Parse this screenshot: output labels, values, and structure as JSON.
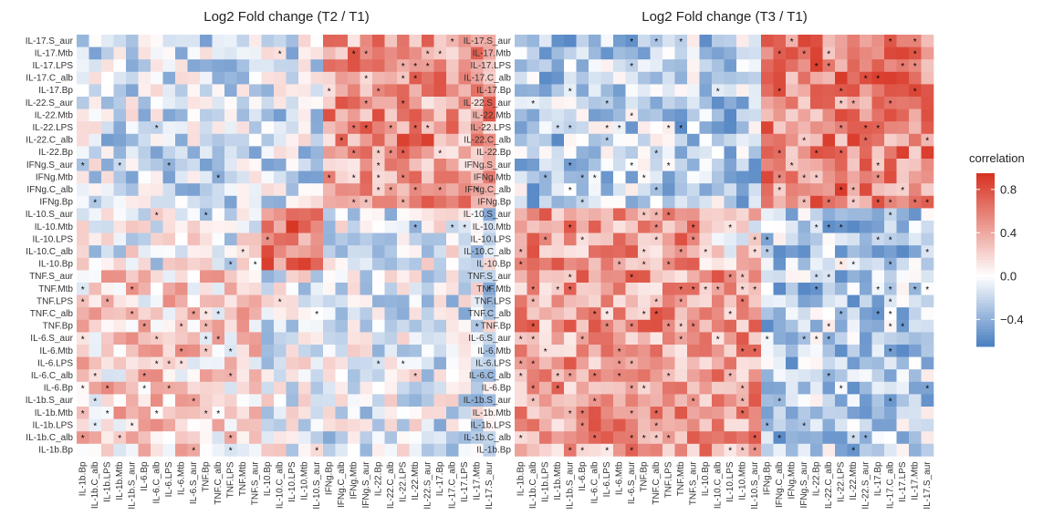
{
  "chart_data": {
    "type": "heatmap",
    "colorbar": {
      "title": "correlation",
      "ticks": [
        0.8,
        0.4,
        0.0,
        -0.4
      ],
      "tick_labels": [
        "0.8",
        "0.4",
        "0.0",
        "−0.4"
      ],
      "range": [
        -0.65,
        0.95
      ],
      "low_color": "#4a7fc1",
      "mid_color": "#ffffff",
      "high_color": "#d7301f"
    },
    "rows": [
      "IL-17.S_aur",
      "IL-17.Mtb",
      "IL-17.LPS",
      "IL-17.C_alb",
      "IL-17.Bp",
      "IL-22.S_aur",
      "IL-22.Mtb",
      "IL-22.LPS",
      "IL-22.C_alb",
      "IL-22.Bp",
      "IFNg.S_aur",
      "IFNg.Mtb",
      "IFNg.C_alb",
      "IFNg.Bp",
      "IL-10.S_aur",
      "IL-10.Mtb",
      "IL-10.LPS",
      "IL-10.C_alb",
      "IL-10.Bp",
      "TNF.S_aur",
      "TNF.Mtb",
      "TNF.LPS",
      "TNF.C_alb",
      "TNF.Bp",
      "IL-6.S_aur",
      "IL-6.Mtb",
      "IL-6.LPS",
      "IL-6.C_alb",
      "IL-6.Bp",
      "IL-1b.S_aur",
      "IL-1b.Mtb",
      "IL-1b.LPS",
      "IL-1b.C_alb",
      "IL-1b.Bp"
    ],
    "columns": [
      "IL-1b.Bp",
      "IL-1b.C_alb",
      "IL-1b.LPS",
      "IL-1b.Mtb",
      "IL-1b.S_aur",
      "IL-6.Bp",
      "IL-6.C_alb",
      "IL-6.LPS",
      "IL-6.Mtb",
      "IL-6.S_aur",
      "TNF.Bp",
      "TNF.C_alb",
      "TNF.LPS",
      "TNF.Mtb",
      "TNF.S_aur",
      "IL-10.Bp",
      "IL-10.C_alb",
      "IL-10.LPS",
      "IL-10.Mtb",
      "IL-10.S_aur",
      "IFNg.Bp",
      "IFNg.C_alb",
      "IFNg.Mtb",
      "IFNg.S_aur",
      "IL-22.Bp",
      "IL-22.C_alb",
      "IL-22.LPS",
      "IL-22.Mtb",
      "IL-22.S_aur",
      "IL-17.Bp",
      "IL-17.C_alb",
      "IL-17.LPS",
      "IL-17.Mtb",
      "IL-17.S_aur"
    ],
    "panels": [
      {
        "title": "Log2 Fold change (T2 / T1)",
        "blocks": [
          {
            "rows": [
              0,
              13
            ],
            "cols": [
              20,
              33
            ],
            "value": 0.45
          },
          {
            "rows": [
              0,
              13
            ],
            "cols": [
              0,
              19
            ],
            "value": -0.15
          },
          {
            "rows": [
              14,
              18
            ],
            "cols": [
              15,
              19
            ],
            "value": 0.6
          },
          {
            "rows": [
              14,
              33
            ],
            "cols": [
              20,
              33
            ],
            "value": -0.1
          },
          {
            "rows": [
              19,
              33
            ],
            "cols": [
              0,
              14
            ],
            "value": 0.2
          },
          {
            "rows": [
              14,
              18
            ],
            "cols": [
              0,
              14
            ],
            "value": -0.05
          },
          {
            "rows": [
              19,
              33
            ],
            "cols": [
              15,
              19
            ],
            "value": -0.05
          },
          {
            "rows": [
              6,
              9
            ],
            "cols": [
              24,
              28
            ],
            "value": 0.55
          }
        ],
        "star_pattern": [
          {
            "rows": [
              14,
              17
            ],
            "cols": [
              15,
              19
            ]
          },
          {
            "rows": [
              1,
              13
            ],
            "cols": [
              20,
              29
            ]
          },
          {
            "rows": [
              20,
              33
            ],
            "cols": [
              0,
              12
            ]
          }
        ]
      },
      {
        "title": "Log2 Fold change (T3 / T1)",
        "blocks": [
          {
            "rows": [
              0,
              13
            ],
            "cols": [
              20,
              33
            ],
            "value": 0.55
          },
          {
            "rows": [
              0,
              13
            ],
            "cols": [
              0,
              19
            ],
            "value": -0.25
          },
          {
            "rows": [
              14,
              33
            ],
            "cols": [
              0,
              19
            ],
            "value": 0.45
          },
          {
            "rows": [
              14,
              33
            ],
            "cols": [
              20,
              33
            ],
            "value": -0.25
          },
          {
            "rows": [
              14,
              18
            ],
            "cols": [
              15,
              19
            ],
            "value": 0.15
          }
        ],
        "star_pattern": [
          {
            "rows": [
              14,
              33
            ],
            "cols": [
              0,
              19
            ]
          },
          {
            "rows": [
              0,
              13
            ],
            "cols": [
              20,
              33
            ]
          },
          {
            "rows": [
              4,
              13
            ],
            "cols": [
              2,
              12
            ]
          },
          {
            "rows": [
              14,
              33
            ],
            "cols": [
              20,
              30
            ]
          }
        ]
      }
    ]
  }
}
